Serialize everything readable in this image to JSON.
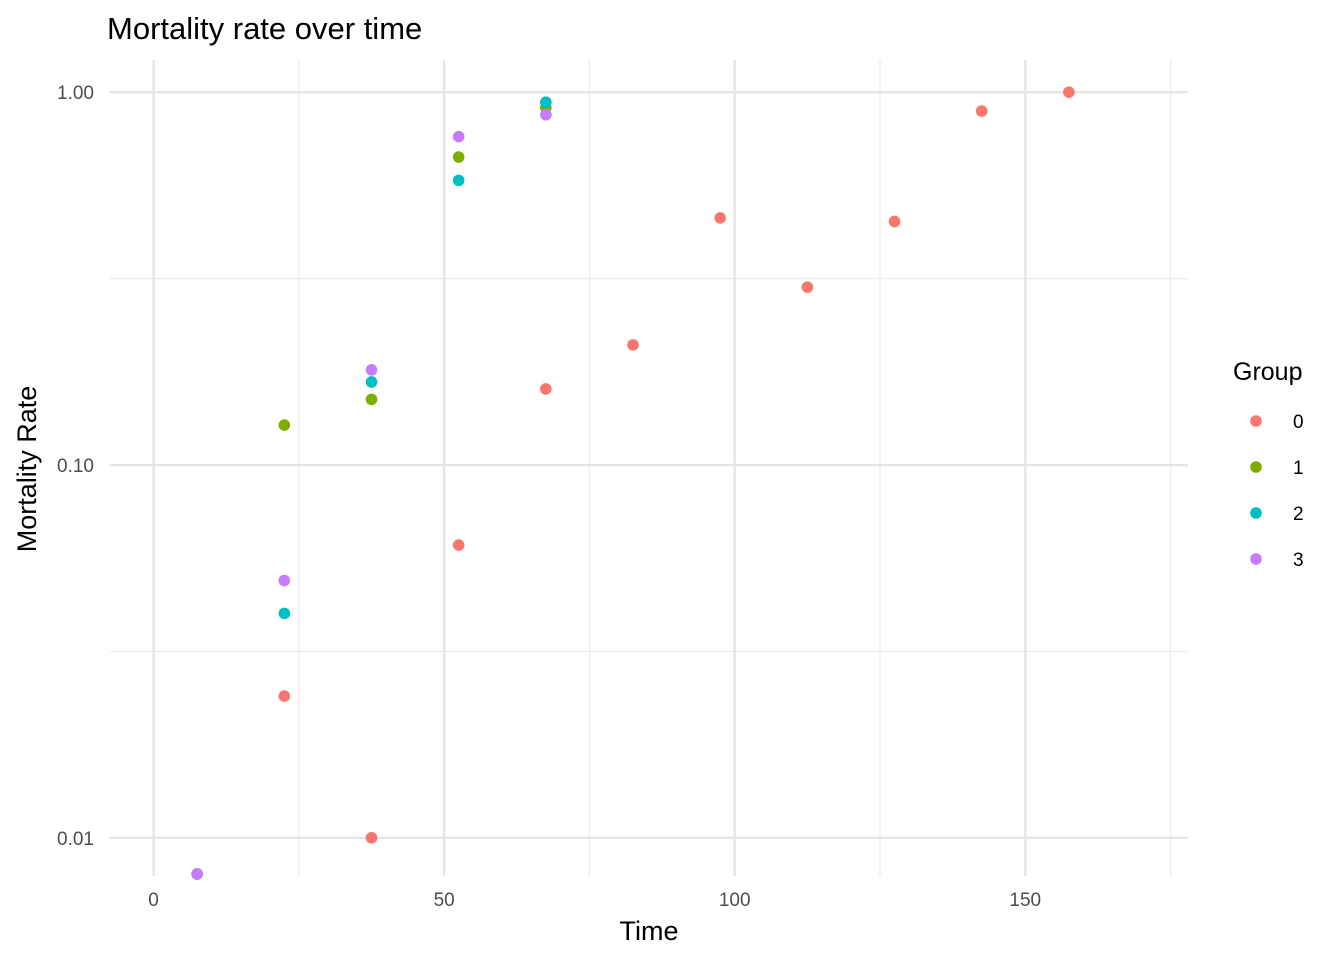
{
  "chart_data": {
    "type": "scatter",
    "title": "Mortality rate over time",
    "xlabel": "Time",
    "ylabel": "Mortality Rate",
    "xlim": [
      -7.5,
      178
    ],
    "ylim": [
      0.0079,
      1.22
    ],
    "y_scale": "log10",
    "x_ticks": [
      0,
      50,
      100,
      150
    ],
    "x_tick_labels": [
      "0",
      "50",
      "100",
      "150"
    ],
    "y_ticks": [
      0.01,
      0.1,
      1.0
    ],
    "y_tick_labels": [
      "0.01",
      "0.10",
      "1.00"
    ],
    "grid": true,
    "legend": {
      "title": "Group",
      "position": "right"
    },
    "series": [
      {
        "name": "0",
        "color": "#F8766D",
        "points": [
          {
            "x": 7.5,
            "y": 0.008
          },
          {
            "x": 22.5,
            "y": 0.024
          },
          {
            "x": 37.5,
            "y": 0.01
          },
          {
            "x": 52.5,
            "y": 0.061
          },
          {
            "x": 67.5,
            "y": 0.16
          },
          {
            "x": 82.5,
            "y": 0.21
          },
          {
            "x": 97.5,
            "y": 0.46
          },
          {
            "x": 112.5,
            "y": 0.3
          },
          {
            "x": 127.5,
            "y": 0.45
          },
          {
            "x": 142.5,
            "y": 0.89
          },
          {
            "x": 157.5,
            "y": 1.0
          }
        ]
      },
      {
        "name": "1",
        "color": "#7CAE00",
        "points": [
          {
            "x": 7.5,
            "y": 0.008
          },
          {
            "x": 22.5,
            "y": 0.128
          },
          {
            "x": 37.5,
            "y": 0.15
          },
          {
            "x": 52.5,
            "y": 0.67
          },
          {
            "x": 67.5,
            "y": 0.91
          }
        ]
      },
      {
        "name": "2",
        "color": "#00BFC4",
        "points": [
          {
            "x": 7.5,
            "y": 0.008
          },
          {
            "x": 22.5,
            "y": 0.04
          },
          {
            "x": 37.5,
            "y": 0.167
          },
          {
            "x": 52.5,
            "y": 0.58
          },
          {
            "x": 67.5,
            "y": 0.94
          }
        ]
      },
      {
        "name": "3",
        "color": "#C77CFF",
        "points": [
          {
            "x": 7.5,
            "y": 0.008
          },
          {
            "x": 22.5,
            "y": 0.049
          },
          {
            "x": 37.5,
            "y": 0.18
          },
          {
            "x": 52.5,
            "y": 0.76
          },
          {
            "x": 67.5,
            "y": 0.87
          }
        ]
      }
    ]
  }
}
